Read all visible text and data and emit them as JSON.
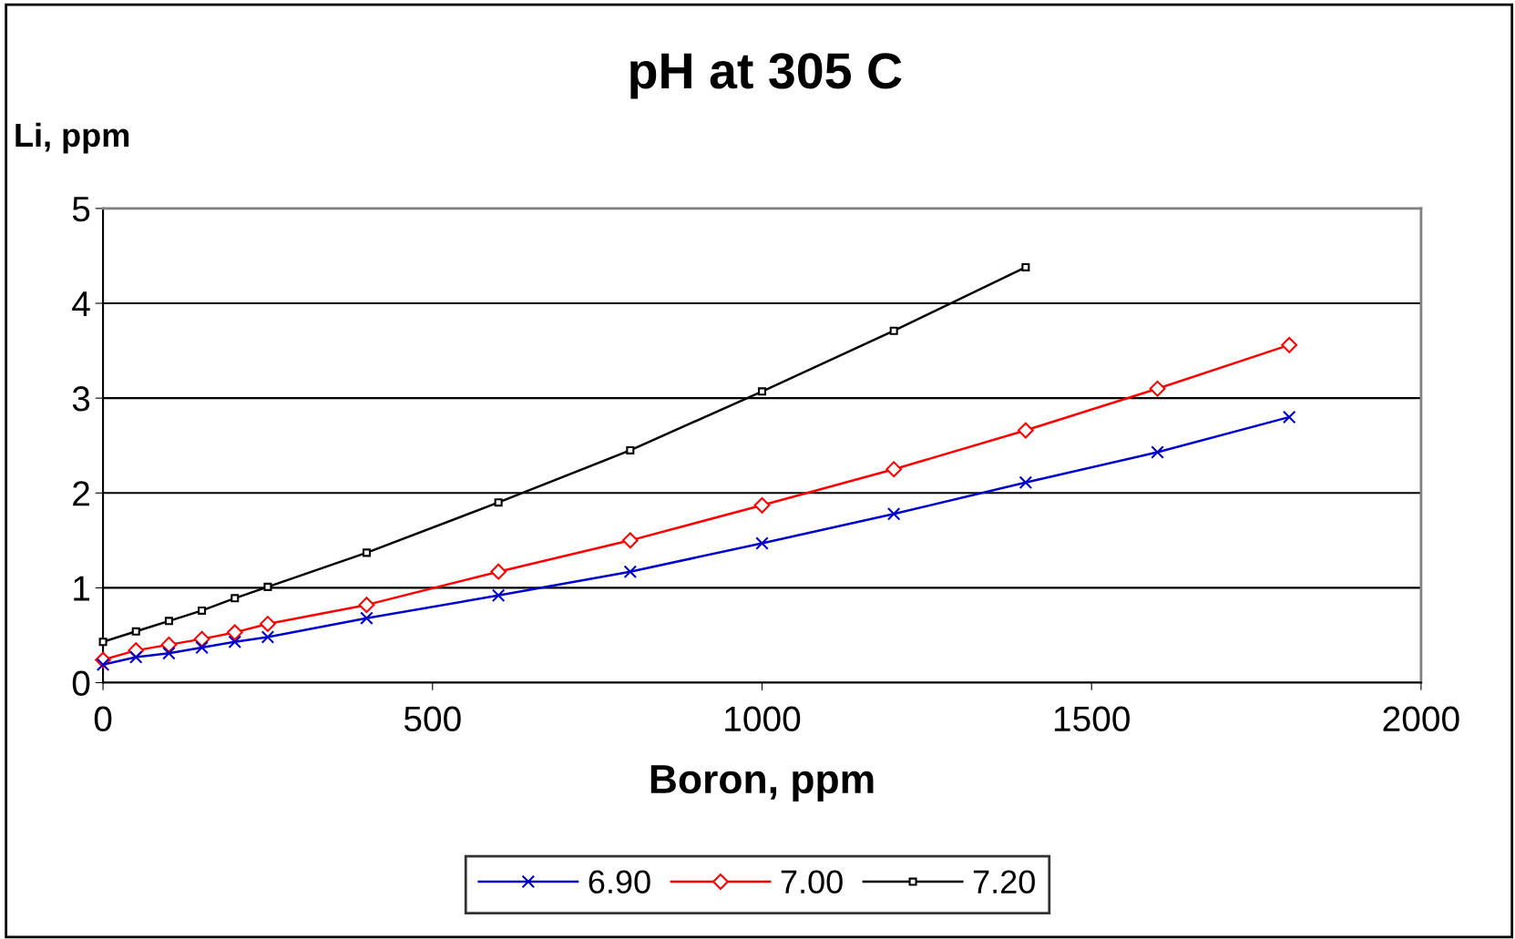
{
  "chart_data": {
    "type": "line",
    "title": "pH at 305 C",
    "xlabel": "Boron, ppm",
    "ylabel": "Li, ppm",
    "xlim": [
      0,
      2000
    ],
    "xticks": [
      0,
      500,
      1000,
      1500,
      2000
    ],
    "ylim": [
      0,
      5
    ],
    "yticks": [
      0,
      1,
      2,
      3,
      4,
      5
    ],
    "grid": "y",
    "legend": "bottom",
    "line_style": "solid",
    "series": [
      {
        "name": "6.90",
        "color": "#0000cc",
        "marker": "cross",
        "x": [
          0,
          50,
          100,
          150,
          200,
          250,
          400,
          600,
          800,
          1000,
          1200,
          1400,
          1600,
          1800
        ],
        "values": [
          0.19,
          0.27,
          0.31,
          0.37,
          0.43,
          0.48,
          0.68,
          0.92,
          1.17,
          1.47,
          1.78,
          2.11,
          2.43,
          2.8
        ]
      },
      {
        "name": "7.00",
        "color": "#ff0000",
        "marker": "diamond",
        "x": [
          0,
          50,
          100,
          150,
          200,
          250,
          400,
          600,
          800,
          1000,
          1200,
          1400,
          1600,
          1800
        ],
        "values": [
          0.24,
          0.34,
          0.4,
          0.46,
          0.53,
          0.62,
          0.82,
          1.17,
          1.5,
          1.87,
          2.25,
          2.66,
          3.1,
          3.56
        ]
      },
      {
        "name": "7.20",
        "color": "#000000",
        "marker": "square",
        "x": [
          0,
          50,
          100,
          150,
          200,
          250,
          400,
          600,
          800,
          1000,
          1200,
          1400
        ],
        "values": [
          0.43,
          0.54,
          0.65,
          0.76,
          0.89,
          1.01,
          1.37,
          1.9,
          2.45,
          3.07,
          3.71,
          4.38
        ]
      }
    ]
  }
}
